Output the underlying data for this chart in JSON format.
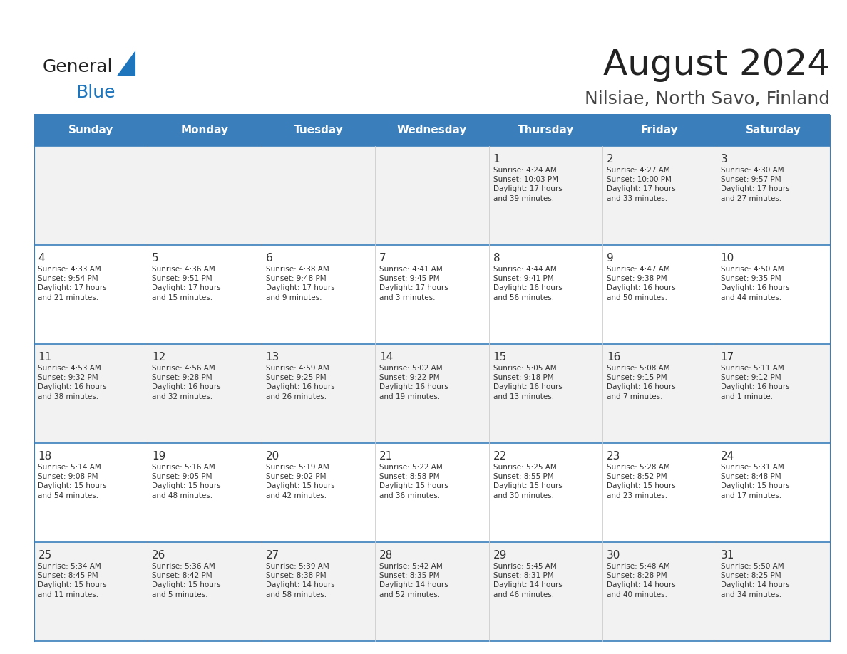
{
  "title": "August 2024",
  "subtitle": "Nilsiae, North Savo, Finland",
  "days_of_week": [
    "Sunday",
    "Monday",
    "Tuesday",
    "Wednesday",
    "Thursday",
    "Friday",
    "Saturday"
  ],
  "header_bg": "#3A7EBB",
  "header_text": "#FFFFFF",
  "row_bg_even": "#F2F2F2",
  "row_bg_odd": "#FFFFFF",
  "cell_text_color": "#333333",
  "day_number_color": "#333333",
  "border_color": "#3A7EBB",
  "title_color": "#222222",
  "subtitle_color": "#444444",
  "logo_general_color": "#222222",
  "logo_blue_color": "#1E75BB",
  "calendar_data": [
    [
      {
        "day": null,
        "info": ""
      },
      {
        "day": null,
        "info": ""
      },
      {
        "day": null,
        "info": ""
      },
      {
        "day": null,
        "info": ""
      },
      {
        "day": 1,
        "info": "Sunrise: 4:24 AM\nSunset: 10:03 PM\nDaylight: 17 hours\nand 39 minutes."
      },
      {
        "day": 2,
        "info": "Sunrise: 4:27 AM\nSunset: 10:00 PM\nDaylight: 17 hours\nand 33 minutes."
      },
      {
        "day": 3,
        "info": "Sunrise: 4:30 AM\nSunset: 9:57 PM\nDaylight: 17 hours\nand 27 minutes."
      }
    ],
    [
      {
        "day": 4,
        "info": "Sunrise: 4:33 AM\nSunset: 9:54 PM\nDaylight: 17 hours\nand 21 minutes."
      },
      {
        "day": 5,
        "info": "Sunrise: 4:36 AM\nSunset: 9:51 PM\nDaylight: 17 hours\nand 15 minutes."
      },
      {
        "day": 6,
        "info": "Sunrise: 4:38 AM\nSunset: 9:48 PM\nDaylight: 17 hours\nand 9 minutes."
      },
      {
        "day": 7,
        "info": "Sunrise: 4:41 AM\nSunset: 9:45 PM\nDaylight: 17 hours\nand 3 minutes."
      },
      {
        "day": 8,
        "info": "Sunrise: 4:44 AM\nSunset: 9:41 PM\nDaylight: 16 hours\nand 56 minutes."
      },
      {
        "day": 9,
        "info": "Sunrise: 4:47 AM\nSunset: 9:38 PM\nDaylight: 16 hours\nand 50 minutes."
      },
      {
        "day": 10,
        "info": "Sunrise: 4:50 AM\nSunset: 9:35 PM\nDaylight: 16 hours\nand 44 minutes."
      }
    ],
    [
      {
        "day": 11,
        "info": "Sunrise: 4:53 AM\nSunset: 9:32 PM\nDaylight: 16 hours\nand 38 minutes."
      },
      {
        "day": 12,
        "info": "Sunrise: 4:56 AM\nSunset: 9:28 PM\nDaylight: 16 hours\nand 32 minutes."
      },
      {
        "day": 13,
        "info": "Sunrise: 4:59 AM\nSunset: 9:25 PM\nDaylight: 16 hours\nand 26 minutes."
      },
      {
        "day": 14,
        "info": "Sunrise: 5:02 AM\nSunset: 9:22 PM\nDaylight: 16 hours\nand 19 minutes."
      },
      {
        "day": 15,
        "info": "Sunrise: 5:05 AM\nSunset: 9:18 PM\nDaylight: 16 hours\nand 13 minutes."
      },
      {
        "day": 16,
        "info": "Sunrise: 5:08 AM\nSunset: 9:15 PM\nDaylight: 16 hours\nand 7 minutes."
      },
      {
        "day": 17,
        "info": "Sunrise: 5:11 AM\nSunset: 9:12 PM\nDaylight: 16 hours\nand 1 minute."
      }
    ],
    [
      {
        "day": 18,
        "info": "Sunrise: 5:14 AM\nSunset: 9:08 PM\nDaylight: 15 hours\nand 54 minutes."
      },
      {
        "day": 19,
        "info": "Sunrise: 5:16 AM\nSunset: 9:05 PM\nDaylight: 15 hours\nand 48 minutes."
      },
      {
        "day": 20,
        "info": "Sunrise: 5:19 AM\nSunset: 9:02 PM\nDaylight: 15 hours\nand 42 minutes."
      },
      {
        "day": 21,
        "info": "Sunrise: 5:22 AM\nSunset: 8:58 PM\nDaylight: 15 hours\nand 36 minutes."
      },
      {
        "day": 22,
        "info": "Sunrise: 5:25 AM\nSunset: 8:55 PM\nDaylight: 15 hours\nand 30 minutes."
      },
      {
        "day": 23,
        "info": "Sunrise: 5:28 AM\nSunset: 8:52 PM\nDaylight: 15 hours\nand 23 minutes."
      },
      {
        "day": 24,
        "info": "Sunrise: 5:31 AM\nSunset: 8:48 PM\nDaylight: 15 hours\nand 17 minutes."
      }
    ],
    [
      {
        "day": 25,
        "info": "Sunrise: 5:34 AM\nSunset: 8:45 PM\nDaylight: 15 hours\nand 11 minutes."
      },
      {
        "day": 26,
        "info": "Sunrise: 5:36 AM\nSunset: 8:42 PM\nDaylight: 15 hours\nand 5 minutes."
      },
      {
        "day": 27,
        "info": "Sunrise: 5:39 AM\nSunset: 8:38 PM\nDaylight: 14 hours\nand 58 minutes."
      },
      {
        "day": 28,
        "info": "Sunrise: 5:42 AM\nSunset: 8:35 PM\nDaylight: 14 hours\nand 52 minutes."
      },
      {
        "day": 29,
        "info": "Sunrise: 5:45 AM\nSunset: 8:31 PM\nDaylight: 14 hours\nand 46 minutes."
      },
      {
        "day": 30,
        "info": "Sunrise: 5:48 AM\nSunset: 8:28 PM\nDaylight: 14 hours\nand 40 minutes."
      },
      {
        "day": 31,
        "info": "Sunrise: 5:50 AM\nSunset: 8:25 PM\nDaylight: 14 hours\nand 34 minutes."
      }
    ]
  ]
}
